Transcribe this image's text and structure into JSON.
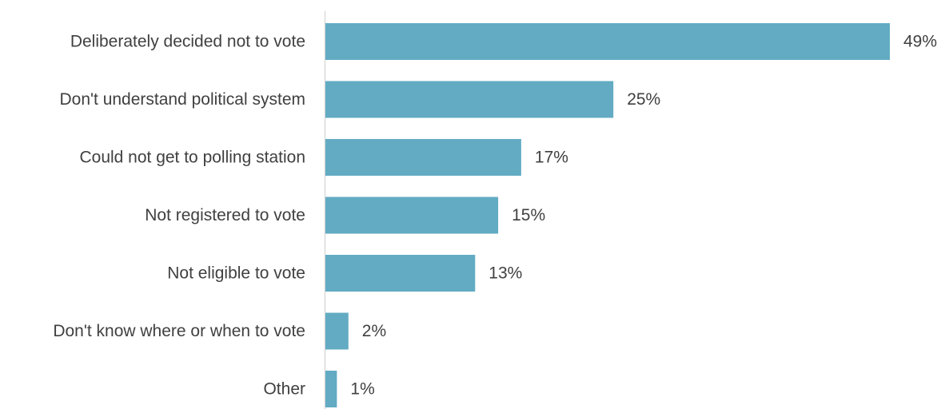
{
  "chart_data": {
    "type": "bar",
    "orientation": "horizontal",
    "title": "",
    "xlabel": "",
    "ylabel": "",
    "categories": [
      "Deliberately decided not to vote",
      "Don't understand political system",
      "Could not get to polling station",
      "Not registered to vote",
      "Not eligible to vote",
      "Don't know where or when to vote",
      "Other"
    ],
    "values": [
      49,
      25,
      17,
      15,
      13,
      2,
      1
    ],
    "value_labels": [
      "49%",
      "25%",
      "17%",
      "15%",
      "13%",
      "2%",
      "1%"
    ],
    "unit": "%",
    "xlim": [
      0,
      49
    ],
    "grid": false,
    "legend": "none",
    "colors": {
      "bar": "#62abc3",
      "axis": "#d9d9d9",
      "text": "#404040"
    }
  }
}
